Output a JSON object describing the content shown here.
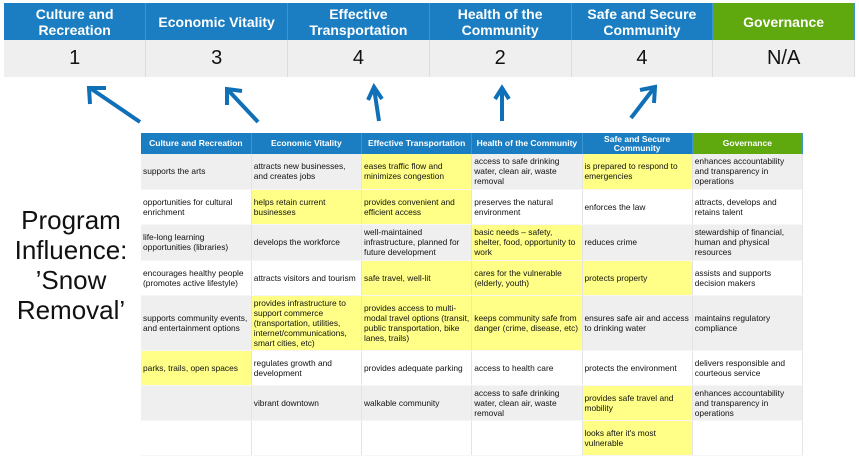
{
  "scores_table": {
    "headers": [
      "Culture and Recreation",
      "Economic Vitality",
      "Effective Transportation",
      "Health of the Community",
      "Safe and Secure Community",
      "Governance"
    ],
    "scores": [
      "1",
      "3",
      "4",
      "2",
      "4",
      "N/A"
    ]
  },
  "program_label": {
    "line1": "Program",
    "line2": "Influence:",
    "line3": "’Snow",
    "line4": "Removal’"
  },
  "colors": {
    "header_blue": "#1b7ec2",
    "governance_green": "#5fa80e",
    "highlight_yellow": "#ffff88",
    "arrow_blue": "#0f70b7"
  },
  "influence_table": {
    "headers": [
      "Culture and Recreation",
      "Economic Vitality",
      "Effective Transportation",
      "Health of the Community",
      "Safe and Secure Community",
      "Governance"
    ],
    "rows": [
      {
        "cells": [
          "supports the arts",
          "attracts new businesses, and creates jobs",
          "eases traffic flow and minimizes congestion",
          "access to safe drinking water, clean air, waste removal",
          "is prepared to respond to emergencies",
          "enhances accountability and transparency in operations"
        ],
        "highlighted": [
          false,
          false,
          true,
          false,
          true,
          false
        ]
      },
      {
        "cells": [
          "opportunities for cultural enrichment",
          "helps retain current businesses",
          "provides convenient and efficient access",
          "preserves the natural environment",
          "enforces the law",
          "attracts, develops and retains talent"
        ],
        "highlighted": [
          false,
          true,
          true,
          false,
          false,
          false
        ]
      },
      {
        "cells": [
          "life-long learning opportunities (libraries)",
          "develops the workforce",
          "well-maintained infrastructure, planned for future development",
          "basic needs – safety, shelter, food, opportunity to work",
          "reduces crime",
          "stewardship of financial, human and physical resources"
        ],
        "highlighted": [
          false,
          false,
          false,
          true,
          false,
          false
        ]
      },
      {
        "cells": [
          "encourages healthy people (promotes active lifestyle)",
          "attracts visitors and tourism",
          "safe travel, well-lit",
          "cares for the vulnerable (elderly, youth)",
          "protects property",
          "assists and supports decision makers"
        ],
        "highlighted": [
          false,
          false,
          true,
          true,
          true,
          false
        ]
      },
      {
        "cells": [
          "supports community events, and entertainment options",
          "provides infrastructure to support commerce (transportation, utilities, internet/communications, smart cities, etc)",
          "provides access to multi-modal travel options (transit, public transportation, bike lanes, trails)",
          "keeps community safe from danger (crime, disease, etc)",
          "ensures safe air and access to drinking water",
          "maintains regulatory compliance"
        ],
        "highlighted": [
          false,
          true,
          true,
          true,
          false,
          false
        ]
      },
      {
        "cells": [
          "parks, trails, open spaces",
          "regulates growth and development",
          "provides adequate parking",
          "access to health care",
          "protects the environment",
          "delivers responsible and courteous service"
        ],
        "highlighted": [
          true,
          false,
          false,
          false,
          false,
          false
        ]
      },
      {
        "cells": [
          "",
          "vibrant downtown",
          "walkable community",
          "access to safe drinking water, clean air, waste removal",
          "provides safe travel and mobility",
          "enhances accountability and transparency in operations"
        ],
        "highlighted": [
          false,
          false,
          false,
          false,
          true,
          false
        ]
      },
      {
        "cells": [
          "",
          "",
          "",
          "",
          "looks after it's most vulnerable",
          ""
        ],
        "highlighted": [
          false,
          false,
          false,
          false,
          true,
          false
        ]
      }
    ]
  }
}
